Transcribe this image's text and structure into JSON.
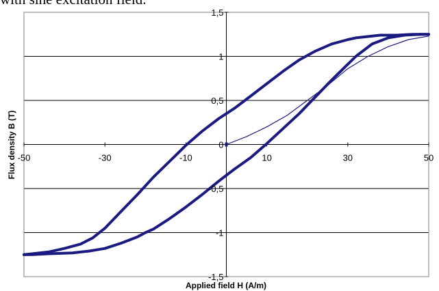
{
  "top_text": "with sine excitation field.",
  "chart_data": {
    "type": "line",
    "title": "",
    "xlabel": "Applied field H (A/m)",
    "ylabel": "Flux density B (T)",
    "xlim": [
      -50,
      50
    ],
    "ylim": [
      -1.5,
      1.5
    ],
    "x_ticks": [
      -50,
      -30,
      -10,
      10,
      30,
      50
    ],
    "x_tick_labels": [
      "-50",
      "-30",
      "-10",
      "10",
      "30",
      "50"
    ],
    "y_ticks": [
      -1.5,
      -1,
      -0.5,
      0,
      0.5,
      1,
      1.5
    ],
    "y_tick_labels": [
      "-1,5",
      "-1",
      "-0,5",
      "0",
      "0,5",
      "1",
      "1,5"
    ],
    "grid": "horizontal",
    "legend": "none",
    "line_color": "#1a1a80",
    "series": [
      {
        "style": "thick",
        "x": [
          -50,
          -48,
          -44,
          -40,
          -36,
          -33,
          -30,
          -26,
          -22,
          -18,
          -14,
          -10,
          -6,
          -2,
          0,
          2,
          6,
          10,
          14,
          18,
          22,
          26,
          30,
          32,
          34,
          38,
          42,
          46,
          48,
          50
        ],
        "y": [
          -1.25,
          -1.24,
          -1.22,
          -1.18,
          -1.13,
          -1.06,
          -0.95,
          -0.76,
          -0.57,
          -0.37,
          -0.19,
          -0.01,
          0.15,
          0.29,
          0.35,
          0.41,
          0.55,
          0.69,
          0.83,
          0.96,
          1.06,
          1.14,
          1.19,
          1.21,
          1.22,
          1.24,
          1.24,
          1.25,
          1.25,
          1.25
        ]
      },
      {
        "style": "thick",
        "x": [
          50,
          48,
          44,
          40,
          36,
          34,
          32,
          30,
          26,
          22,
          18,
          14,
          10,
          8,
          6,
          2,
          0,
          -2,
          -6,
          -10,
          -14,
          -18,
          -20,
          -22,
          -26,
          -30,
          -34,
          -38,
          -44,
          -48,
          -50
        ],
        "y": [
          1.25,
          1.25,
          1.24,
          1.21,
          1.14,
          1.07,
          1.0,
          0.91,
          0.73,
          0.54,
          0.35,
          0.18,
          0.01,
          -0.07,
          -0.15,
          -0.28,
          -0.35,
          -0.42,
          -0.57,
          -0.71,
          -0.84,
          -0.96,
          -1.0,
          -1.05,
          -1.12,
          -1.18,
          -1.21,
          -1.23,
          -1.24,
          -1.25,
          -1.25
        ]
      },
      {
        "style": "thin",
        "x": [
          0,
          5,
          10,
          15,
          20,
          25,
          30,
          35,
          40,
          45,
          50
        ],
        "y": [
          0,
          0.09,
          0.2,
          0.33,
          0.5,
          0.67,
          0.86,
          1.0,
          1.11,
          1.19,
          1.23
        ]
      }
    ]
  }
}
